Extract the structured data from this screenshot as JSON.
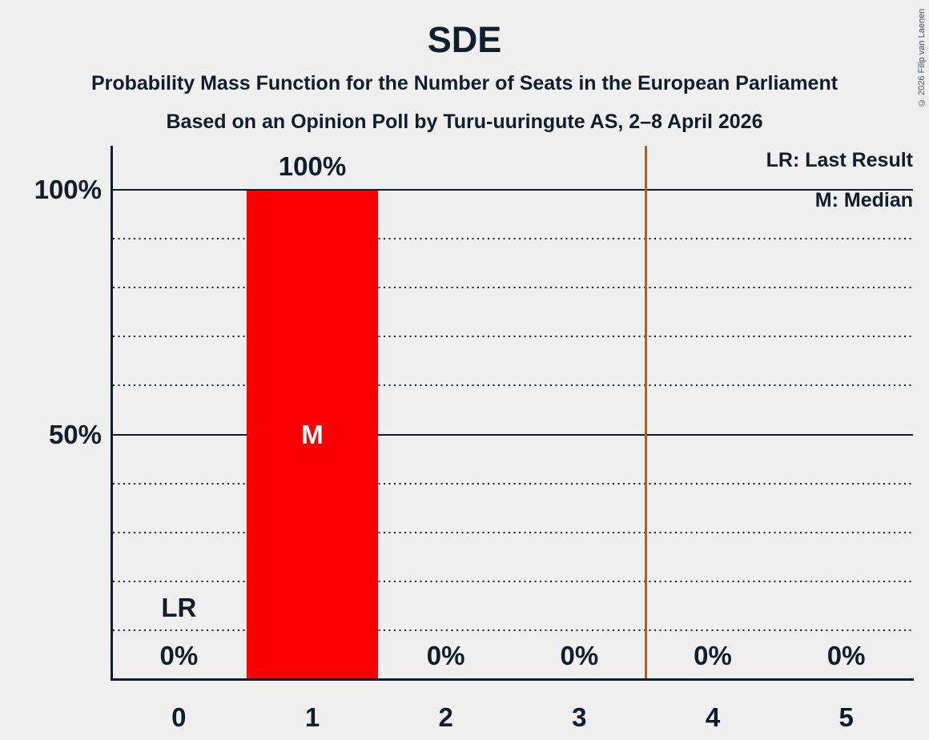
{
  "header": {
    "title": "SDE",
    "subtitle1": "Probability Mass Function for the Number of Seats in the European Parliament",
    "subtitle2": "Based on an Opinion Poll by Turu-uuringute AS, 2–8 April 2026"
  },
  "legend": {
    "last_result": "LR: Last Result",
    "median": "M: Median"
  },
  "footer": {
    "copyright": "© 2026 Filip van Laenen"
  },
  "colors": {
    "background": "#EFEFEF",
    "ink": "#101E2C",
    "bar": "#FA0000",
    "majority_line": "#D05800",
    "median_text": "#FFFFFF",
    "copyright_text": "#46525D"
  },
  "chart_data": {
    "type": "bar",
    "title": "SDE",
    "categories": [
      "0",
      "1",
      "2",
      "3",
      "4",
      "5"
    ],
    "values": [
      0,
      100,
      0,
      0,
      0,
      0
    ],
    "bar_labels": [
      "0%",
      "100%",
      "0%",
      "0%",
      "0%",
      "0%"
    ],
    "ylim": [
      0,
      100
    ],
    "yticks": [
      {
        "pct": 100,
        "label": "100%"
      },
      {
        "pct": 50,
        "label": "50%"
      }
    ],
    "solid_gridlines_pct": [
      100,
      50
    ],
    "dotted_gridlines_pct": [
      90,
      80,
      70,
      60,
      40,
      30,
      20,
      10
    ],
    "median": {
      "seat_index": 1,
      "marker": "M"
    },
    "last_result": {
      "seat_index": 0,
      "marker": "LR"
    },
    "majority_line_x": 3.5,
    "grid": "horizontal",
    "legend_position": "top-right"
  }
}
